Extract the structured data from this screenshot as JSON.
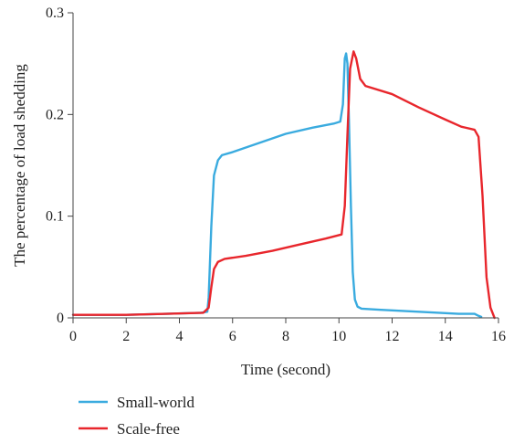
{
  "chart_data": {
    "type": "line",
    "title": "",
    "xlabel": "Time (second)",
    "ylabel": "The percentage of load shedding",
    "xlim": [
      0,
      16
    ],
    "ylim": [
      0,
      0.3
    ],
    "x_ticks": [
      0,
      2,
      4,
      6,
      8,
      10,
      12,
      14,
      16
    ],
    "x_tick_labels": [
      "0",
      "2",
      "4",
      "6",
      "8",
      "10",
      "12",
      "14",
      "16"
    ],
    "y_ticks": [
      0,
      0.1,
      0.2,
      0.3
    ],
    "y_tick_labels": [
      "0",
      "0.1",
      "0.2",
      "0.3"
    ],
    "grid": false,
    "legend_position": "bottom-left",
    "series": [
      {
        "name": "Small-world",
        "color": "#3aabdf",
        "points": [
          [
            0,
            0.003
          ],
          [
            2,
            0.003
          ],
          [
            3.5,
            0.004
          ],
          [
            4.8,
            0.005
          ],
          [
            5.05,
            0.006
          ],
          [
            5.1,
            0.02
          ],
          [
            5.2,
            0.09
          ],
          [
            5.3,
            0.14
          ],
          [
            5.45,
            0.155
          ],
          [
            5.6,
            0.16
          ],
          [
            6,
            0.163
          ],
          [
            7,
            0.172
          ],
          [
            8,
            0.181
          ],
          [
            9,
            0.187
          ],
          [
            9.8,
            0.191
          ],
          [
            10.05,
            0.193
          ],
          [
            10.15,
            0.21
          ],
          [
            10.22,
            0.255
          ],
          [
            10.27,
            0.26
          ],
          [
            10.32,
            0.25
          ],
          [
            10.38,
            0.19
          ],
          [
            10.45,
            0.11
          ],
          [
            10.52,
            0.045
          ],
          [
            10.6,
            0.018
          ],
          [
            10.7,
            0.011
          ],
          [
            10.85,
            0.009
          ],
          [
            11.5,
            0.008
          ],
          [
            13,
            0.006
          ],
          [
            14.5,
            0.004
          ],
          [
            15.1,
            0.004
          ],
          [
            15.25,
            0.002
          ],
          [
            15.35,
            0.001
          ]
        ]
      },
      {
        "name": "Scale-free",
        "color": "#e8262c",
        "points": [
          [
            0,
            0.003
          ],
          [
            2,
            0.003
          ],
          [
            3.5,
            0.004
          ],
          [
            4.9,
            0.005
          ],
          [
            5.1,
            0.01
          ],
          [
            5.2,
            0.03
          ],
          [
            5.3,
            0.048
          ],
          [
            5.45,
            0.055
          ],
          [
            5.7,
            0.058
          ],
          [
            6.5,
            0.061
          ],
          [
            7.5,
            0.066
          ],
          [
            8.5,
            0.072
          ],
          [
            9.5,
            0.078
          ],
          [
            10.1,
            0.082
          ],
          [
            10.22,
            0.11
          ],
          [
            10.32,
            0.18
          ],
          [
            10.42,
            0.245
          ],
          [
            10.55,
            0.262
          ],
          [
            10.65,
            0.255
          ],
          [
            10.8,
            0.235
          ],
          [
            11,
            0.228
          ],
          [
            12,
            0.22
          ],
          [
            13,
            0.207
          ],
          [
            14,
            0.195
          ],
          [
            14.6,
            0.188
          ],
          [
            15.1,
            0.185
          ],
          [
            15.25,
            0.178
          ],
          [
            15.4,
            0.12
          ],
          [
            15.55,
            0.04
          ],
          [
            15.7,
            0.01
          ],
          [
            15.85,
            0.0
          ]
        ]
      }
    ]
  }
}
